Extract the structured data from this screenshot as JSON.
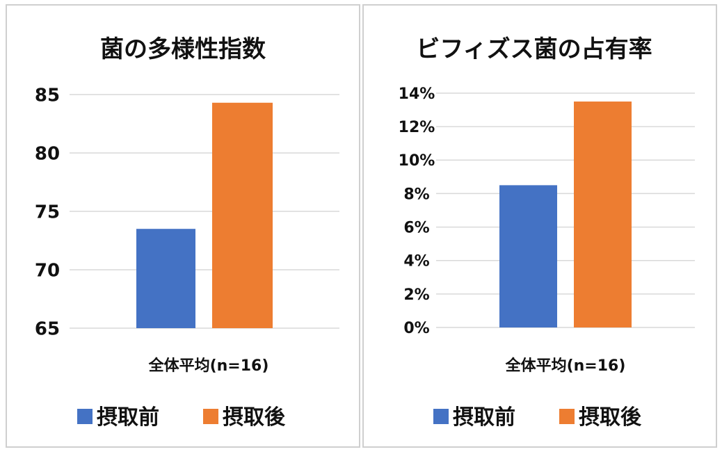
{
  "chart_data": [
    {
      "type": "bar",
      "title": "菌の多様性指数",
      "categories": [
        "全体平均(n=16)"
      ],
      "series": [
        {
          "name": "摂取前",
          "values": [
            73.5
          ],
          "color": "#4472C4"
        },
        {
          "name": "摂取後",
          "values": [
            84.3
          ],
          "color": "#ED7D31"
        }
      ],
      "ylim": [
        65,
        85
      ],
      "yticks": [
        65,
        70,
        75,
        80,
        85
      ],
      "ytick_labels": [
        "65",
        "70",
        "75",
        "80",
        "85"
      ],
      "grid": true,
      "legend_position": "bottom"
    },
    {
      "type": "bar",
      "title": "ビフィズス菌の占有率",
      "categories": [
        "全体平均(n=16)"
      ],
      "series": [
        {
          "name": "摂取前",
          "values": [
            0.085
          ],
          "color": "#4472C4"
        },
        {
          "name": "摂取後",
          "values": [
            0.135
          ],
          "color": "#ED7D31"
        }
      ],
      "ylim": [
        0,
        0.14
      ],
      "yticks": [
        0,
        0.02,
        0.04,
        0.06,
        0.08,
        0.1,
        0.12,
        0.14
      ],
      "ytick_labels": [
        "0%",
        "2%",
        "4%",
        "6%",
        "8%",
        "10%",
        "12%",
        "14%"
      ],
      "grid": true,
      "legend_position": "bottom"
    }
  ]
}
